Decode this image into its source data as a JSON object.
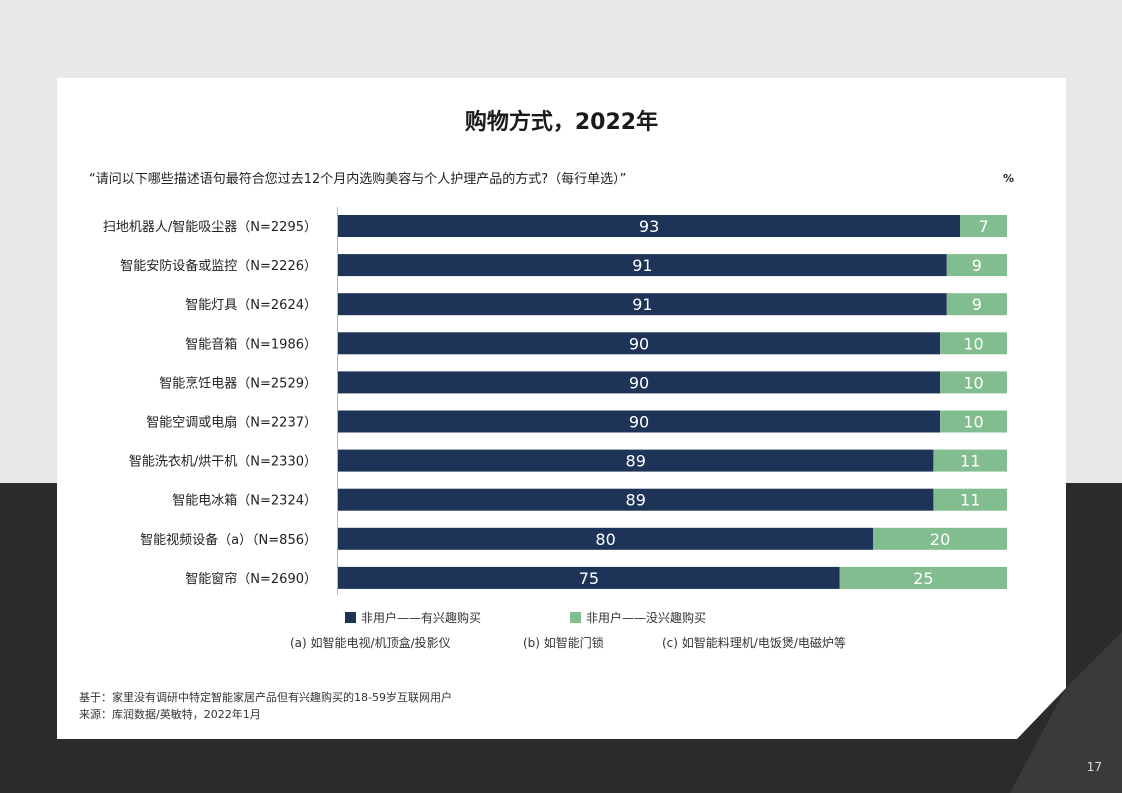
{
  "title": "购物方式，2022年",
  "question": "“请问以下哪些描述语句最符合您过去12个月内选购美容与个人护理产品的方式?（每行单选）”",
  "unit": "%",
  "legend": [
    {
      "label": "非用户——有兴趣购买",
      "color": "#1d3358"
    },
    {
      "label": "非用户——没兴趣购买",
      "color": "#82bd8f"
    }
  ],
  "notes": [
    "(a) 如智能电视/机顶盒/投影仪",
    "(b) 如智能门锁",
    "(c) 如智能料理机/电饭煲/电磁炉等"
  ],
  "footnotes": {
    "base": "基于：家里没有调研中特定智能家居产品但有兴趣购买的18-59岁互联网用户",
    "source": "来源：库润数据/英敏特，2022年1月"
  },
  "page_number": "17",
  "chart_data": {
    "type": "bar",
    "orientation": "horizontal",
    "stacked": true,
    "categories": [
      "扫地机器人/智能吸尘器（N=2295）",
      "智能安防设备或监控（N=2226）",
      "智能灯具（N=2624）",
      "智能音箱（N=1986）",
      "智能烹饪电器（N=2529）",
      "智能空调或电扇（N=2237）",
      "智能洗衣机/烘干机（N=2330）",
      "智能电冰箱（N=2324）",
      "智能视频设备（a）（N=856）",
      "智能窗帘（N=2690）"
    ],
    "series": [
      {
        "name": "非用户——有兴趣购买",
        "color": "#1d3358",
        "values": [
          93,
          91,
          91,
          90,
          90,
          90,
          89,
          89,
          80,
          75
        ]
      },
      {
        "name": "非用户——没兴趣购买",
        "color": "#82bd8f",
        "values": [
          7,
          9,
          9,
          10,
          10,
          10,
          11,
          11,
          20,
          25
        ]
      }
    ],
    "xlim": [
      0,
      100
    ],
    "grid": false,
    "legend_position": "bottom"
  }
}
